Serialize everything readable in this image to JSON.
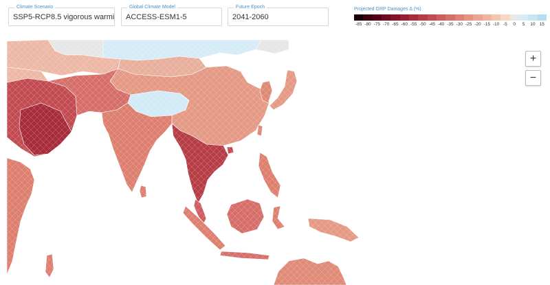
{
  "controls": {
    "scenario": {
      "label": "Climate Scenario",
      "value": "SSP5-RCP8.5 vigorous warmi"
    },
    "model": {
      "label": "Global Climate Model",
      "value": "ACCESS-ESM1-5"
    },
    "epoch": {
      "label": "Future Epoch",
      "value": "2041-2060"
    }
  },
  "legend": {
    "title": "Projected GRP Damages Δ (%)",
    "ticks": [
      "-85",
      "-80",
      "-75",
      "-70",
      "-65",
      "-60",
      "-55",
      "-50",
      "-45",
      "-40",
      "-35",
      "-30",
      "-25",
      "-20",
      "-15",
      "-10",
      "-5",
      "0",
      "5",
      "10",
      "15"
    ],
    "colors": [
      "#1a0006",
      "#3a0010",
      "#55001a",
      "#6e0a22",
      "#85142b",
      "#981e32",
      "#a82c3b",
      "#b63c46",
      "#c24c52",
      "#cd5d5e",
      "#d66e6a",
      "#de8076",
      "#e59283",
      "#eba491",
      "#f0b5a0",
      "#f4c6b1",
      "#f7d8c6",
      "#e8e8e8",
      "#d8ecf5",
      "#c6e6f2",
      "#b5dff0"
    ]
  },
  "zoom": {
    "in_label": "+",
    "out_label": "−"
  },
  "palette": {
    "ocean": "#ffffff",
    "nodata": "#e6e6e6",
    "border": "#ffffff"
  }
}
